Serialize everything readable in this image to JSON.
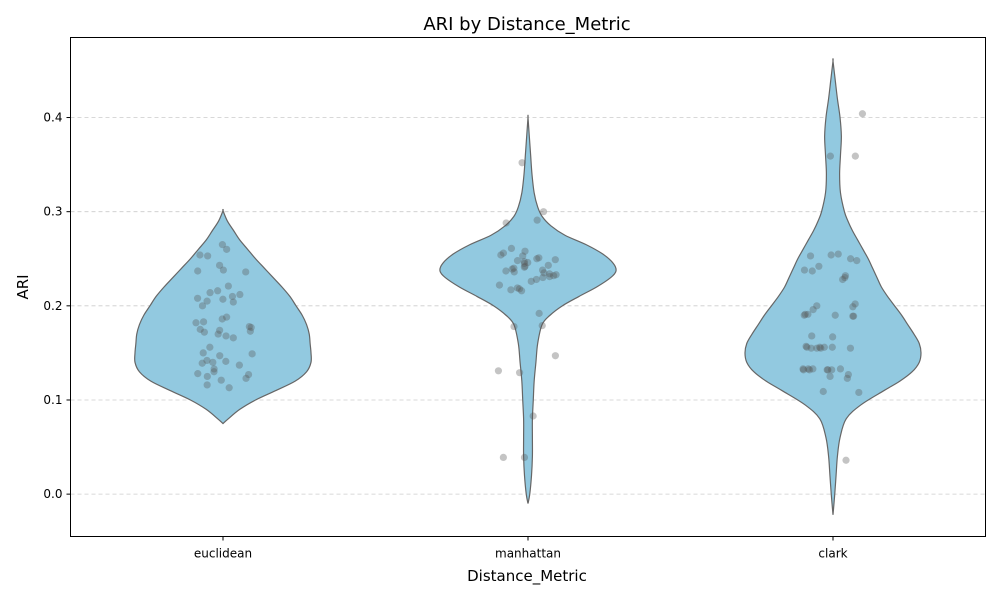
{
  "chart_data": {
    "type": "violin",
    "title": "ARI by Distance_Metric",
    "xlabel": "Distance_Metric",
    "ylabel": "ARI",
    "categories": [
      "euclidean",
      "manhattan",
      "clark"
    ],
    "ylim": [
      -0.045,
      0.485
    ],
    "yticks": [
      0.0,
      0.1,
      0.2,
      0.3,
      0.4
    ],
    "ytick_labels": [
      "0.0",
      "0.1",
      "0.2",
      "0.3",
      "0.4"
    ],
    "grid": "y-dashed",
    "violin_color": "#92c9e0",
    "violin_edge_color": "#666666",
    "point_color": "#555555",
    "violins": [
      {
        "category": "euclidean",
        "range": [
          0.075,
          0.301
        ],
        "density": [
          [
            0.075,
            0.0
          ],
          [
            0.08,
            0.06
          ],
          [
            0.09,
            0.19
          ],
          [
            0.1,
            0.37
          ],
          [
            0.11,
            0.6
          ],
          [
            0.12,
            0.82
          ],
          [
            0.13,
            0.95
          ],
          [
            0.14,
            1.0
          ],
          [
            0.15,
            1.0
          ],
          [
            0.16,
            0.99
          ],
          [
            0.17,
            0.98
          ],
          [
            0.18,
            0.95
          ],
          [
            0.19,
            0.9
          ],
          [
            0.2,
            0.83
          ],
          [
            0.21,
            0.76
          ],
          [
            0.22,
            0.67
          ],
          [
            0.23,
            0.57
          ],
          [
            0.24,
            0.47
          ],
          [
            0.25,
            0.37
          ],
          [
            0.26,
            0.28
          ],
          [
            0.27,
            0.19
          ],
          [
            0.28,
            0.12
          ],
          [
            0.29,
            0.05
          ],
          [
            0.301,
            0.0
          ]
        ],
        "points": [
          0.265,
          0.26,
          0.254,
          0.253,
          0.243,
          0.238,
          0.237,
          0.236,
          0.221,
          0.216,
          0.214,
          0.212,
          0.21,
          0.208,
          0.207,
          0.205,
          0.204,
          0.2,
          0.188,
          0.186,
          0.183,
          0.182,
          0.178,
          0.177,
          0.175,
          0.174,
          0.173,
          0.172,
          0.17,
          0.168,
          0.166,
          0.156,
          0.15,
          0.149,
          0.147,
          0.142,
          0.141,
          0.14,
          0.139,
          0.137,
          0.133,
          0.13,
          0.128,
          0.127,
          0.125,
          0.123,
          0.121,
          0.116,
          0.113
        ]
      },
      {
        "category": "manhattan",
        "range": [
          -0.01,
          0.4
        ],
        "density": [
          [
            -0.01,
            0.0
          ],
          [
            0.0,
            0.02
          ],
          [
            0.02,
            0.04
          ],
          [
            0.04,
            0.05
          ],
          [
            0.06,
            0.05
          ],
          [
            0.08,
            0.05
          ],
          [
            0.1,
            0.06
          ],
          [
            0.12,
            0.07
          ],
          [
            0.14,
            0.09
          ],
          [
            0.16,
            0.11
          ],
          [
            0.18,
            0.16
          ],
          [
            0.19,
            0.25
          ],
          [
            0.2,
            0.39
          ],
          [
            0.21,
            0.58
          ],
          [
            0.22,
            0.78
          ],
          [
            0.23,
            0.94
          ],
          [
            0.237,
            1.0
          ],
          [
            0.245,
            0.97
          ],
          [
            0.255,
            0.85
          ],
          [
            0.265,
            0.66
          ],
          [
            0.275,
            0.42
          ],
          [
            0.285,
            0.26
          ],
          [
            0.295,
            0.16
          ],
          [
            0.305,
            0.11
          ],
          [
            0.32,
            0.07
          ],
          [
            0.34,
            0.045
          ],
          [
            0.36,
            0.03
          ],
          [
            0.38,
            0.015
          ],
          [
            0.4,
            0.0
          ]
        ],
        "points": [
          0.352,
          0.3,
          0.291,
          0.288,
          0.261,
          0.258,
          0.256,
          0.254,
          0.253,
          0.251,
          0.25,
          0.249,
          0.248,
          0.247,
          0.246,
          0.245,
          0.243,
          0.242,
          0.241,
          0.24,
          0.239,
          0.238,
          0.237,
          0.236,
          0.235,
          0.234,
          0.233,
          0.232,
          0.231,
          0.23,
          0.228,
          0.226,
          0.222,
          0.219,
          0.218,
          0.217,
          0.216,
          0.192,
          0.179,
          0.178,
          0.147,
          0.131,
          0.129,
          0.083,
          0.039,
          0.039
        ]
      },
      {
        "category": "clark",
        "range": [
          -0.022,
          0.46
        ],
        "density": [
          [
            -0.022,
            0.0
          ],
          [
            0.0,
            0.02
          ],
          [
            0.02,
            0.035
          ],
          [
            0.04,
            0.05
          ],
          [
            0.06,
            0.08
          ],
          [
            0.08,
            0.15
          ],
          [
            0.095,
            0.32
          ],
          [
            0.11,
            0.58
          ],
          [
            0.12,
            0.76
          ],
          [
            0.13,
            0.9
          ],
          [
            0.14,
            0.98
          ],
          [
            0.15,
            1.0
          ],
          [
            0.16,
            0.98
          ],
          [
            0.17,
            0.92
          ],
          [
            0.18,
            0.85
          ],
          [
            0.19,
            0.78
          ],
          [
            0.2,
            0.7
          ],
          [
            0.21,
            0.62
          ],
          [
            0.22,
            0.55
          ],
          [
            0.23,
            0.5
          ],
          [
            0.24,
            0.45
          ],
          [
            0.25,
            0.4
          ],
          [
            0.26,
            0.34
          ],
          [
            0.27,
            0.28
          ],
          [
            0.28,
            0.22
          ],
          [
            0.29,
            0.17
          ],
          [
            0.3,
            0.13
          ],
          [
            0.32,
            0.085
          ],
          [
            0.34,
            0.075
          ],
          [
            0.36,
            0.085
          ],
          [
            0.38,
            0.095
          ],
          [
            0.4,
            0.08
          ],
          [
            0.42,
            0.05
          ],
          [
            0.44,
            0.025
          ],
          [
            0.46,
            0.0
          ]
        ],
        "points": [
          0.404,
          0.359,
          0.359,
          0.255,
          0.254,
          0.253,
          0.25,
          0.248,
          0.242,
          0.238,
          0.237,
          0.232,
          0.23,
          0.228,
          0.202,
          0.2,
          0.199,
          0.196,
          0.191,
          0.191,
          0.19,
          0.19,
          0.189,
          0.189,
          0.168,
          0.167,
          0.157,
          0.156,
          0.156,
          0.156,
          0.156,
          0.155,
          0.155,
          0.155,
          0.155,
          0.133,
          0.133,
          0.133,
          0.133,
          0.132,
          0.132,
          0.132,
          0.132,
          0.132,
          0.127,
          0.125,
          0.123,
          0.109,
          0.108,
          0.036
        ]
      }
    ]
  }
}
